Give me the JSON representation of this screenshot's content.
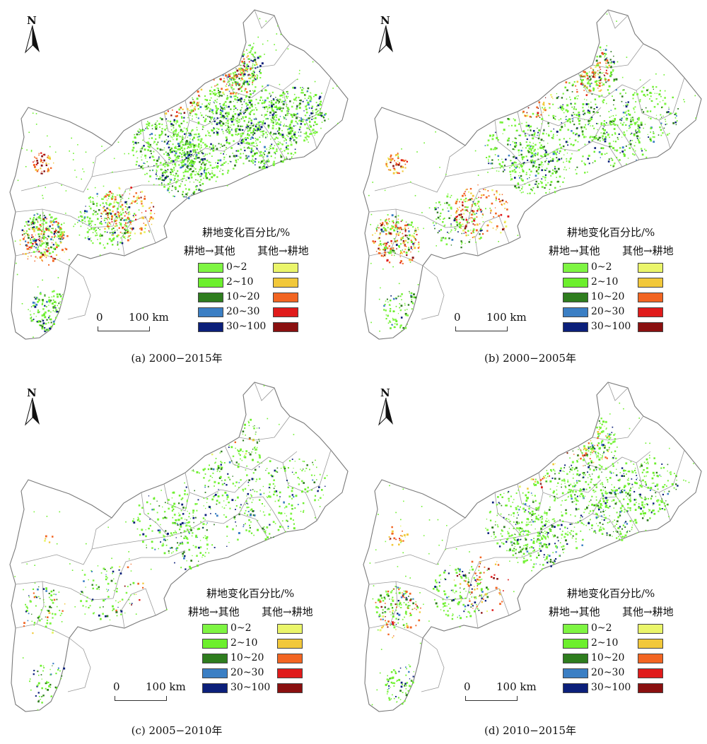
{
  "figure": {
    "legend": {
      "title": "耕地变化百分比/%",
      "col_left": "耕地→其他",
      "col_right": "其他→耕地",
      "classes": [
        "0~2",
        "2~10",
        "10~20",
        "20~30",
        "30~100"
      ],
      "colors_loss": [
        "#7ef542",
        "#6cef2c",
        "#2e7d1e",
        "#3b7fc4",
        "#0b1f7a"
      ],
      "colors_gain": [
        "#eaf56a",
        "#f2c83a",
        "#f26522",
        "#e01b1b",
        "#8a1010"
      ]
    },
    "north_label": "N",
    "scale": {
      "zero": "0",
      "length": "100 km"
    },
    "panels": [
      {
        "id": "a",
        "caption": "(a) 2000−2015年",
        "loss_density": 1.0,
        "gain_density": 0.55
      },
      {
        "id": "b",
        "caption": "(b) 2000−2005年",
        "loss_density": 0.55,
        "gain_density": 0.6
      },
      {
        "id": "c",
        "caption": "(c) 2005−2010年",
        "loss_density": 0.35,
        "gain_density": 0.05
      },
      {
        "id": "d",
        "caption": "(d) 2010−2015年",
        "loss_density": 0.6,
        "gain_density": 0.25
      }
    ]
  }
}
